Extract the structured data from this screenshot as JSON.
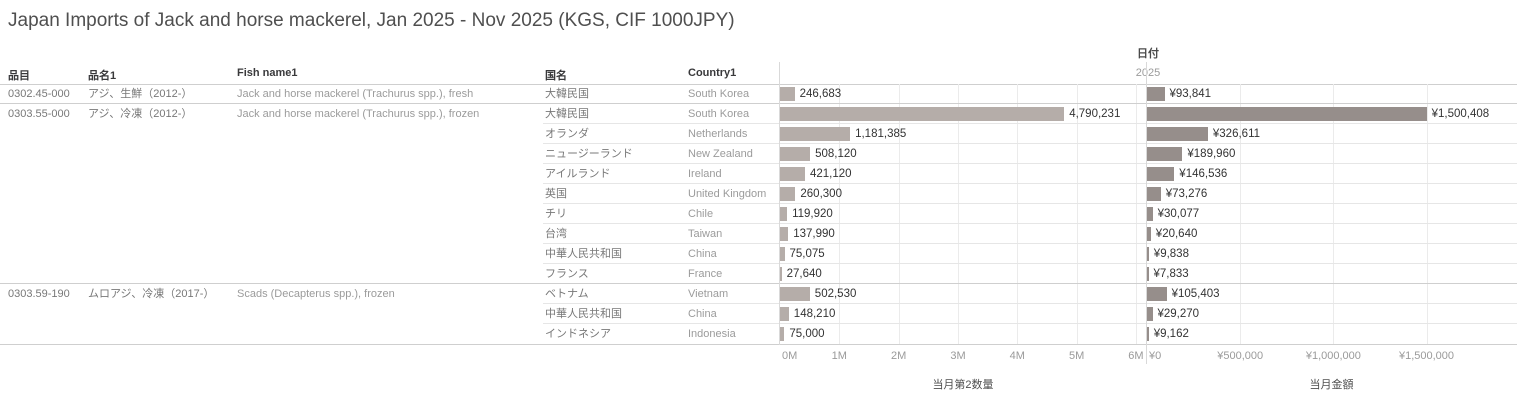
{
  "title": "Japan Imports of Jack and horse mackerel, Jan 2025 - Nov 2025 (KGS, CIF 1000JPY)",
  "header": {
    "item_code": "品目",
    "item_name": "品名1",
    "fish_name": "Fish name1",
    "country_jp": "国名",
    "country_en": "Country1",
    "date": "日付",
    "year": "2025"
  },
  "colors": {
    "qty_bar": "#b5ada9",
    "amt_bar": "#968e8b",
    "grid_line": "#ebebeb",
    "group_border": "#cfcfcf",
    "row_border": "#e6e6e6"
  },
  "chart_data": {
    "type": "bar",
    "orientation": "horizontal",
    "title": "Japan Imports of Jack and horse mackerel, Jan 2025 - Nov 2025 (KGS, CIF 1000JPY)",
    "qty_axis": {
      "title": "当月第2数量",
      "max": 6170000,
      "ticks": [
        {
          "value": 0,
          "label": "0M"
        },
        {
          "value": 1000000,
          "label": "1M"
        },
        {
          "value": 2000000,
          "label": "2M"
        },
        {
          "value": 3000000,
          "label": "3M"
        },
        {
          "value": 4000000,
          "label": "4M"
        },
        {
          "value": 5000000,
          "label": "5M"
        },
        {
          "value": 6000000,
          "label": "6M"
        }
      ]
    },
    "amt_axis": {
      "title": "当月金額",
      "max": 1980000,
      "ticks": [
        {
          "value": 0,
          "label": "¥0"
        },
        {
          "value": 500000,
          "label": "¥500,000"
        },
        {
          "value": 1000000,
          "label": "¥1,000,000"
        },
        {
          "value": 1500000,
          "label": "¥1,500,000"
        }
      ]
    },
    "groups": [
      {
        "code": "0302.45-000",
        "name_jp": "アジ、生鮮（2012-）",
        "fish": "Jack and horse mackerel (Trachurus spp.), fresh",
        "rows": [
          {
            "country_jp": "大韓民国",
            "country_en": "South Korea",
            "qty": 246683,
            "qty_label": "246,683",
            "amt": 93841,
            "amt_label": "¥93,841"
          }
        ]
      },
      {
        "code": "0303.55-000",
        "name_jp": "アジ、冷凍（2012-）",
        "fish": "Jack and horse mackerel (Trachurus spp.), frozen",
        "rows": [
          {
            "country_jp": "大韓民国",
            "country_en": "South Korea",
            "qty": 4790231,
            "qty_label": "4,790,231",
            "amt": 1500408,
            "amt_label": "¥1,500,408"
          },
          {
            "country_jp": "オランダ",
            "country_en": "Netherlands",
            "qty": 1181385,
            "qty_label": "1,181,385",
            "amt": 326611,
            "amt_label": "¥326,611"
          },
          {
            "country_jp": "ニュージーランド",
            "country_en": "New Zealand",
            "qty": 508120,
            "qty_label": "508,120",
            "amt": 189960,
            "amt_label": "¥189,960"
          },
          {
            "country_jp": "アイルランド",
            "country_en": "Ireland",
            "qty": 421120,
            "qty_label": "421,120",
            "amt": 146536,
            "amt_label": "¥146,536"
          },
          {
            "country_jp": "英国",
            "country_en": "United Kingdom",
            "qty": 260300,
            "qty_label": "260,300",
            "amt": 73276,
            "amt_label": "¥73,276"
          },
          {
            "country_jp": "チリ",
            "country_en": "Chile",
            "qty": 119920,
            "qty_label": "119,920",
            "amt": 30077,
            "amt_label": "¥30,077"
          },
          {
            "country_jp": "台湾",
            "country_en": "Taiwan",
            "qty": 137990,
            "qty_label": "137,990",
            "amt": 20640,
            "amt_label": "¥20,640"
          },
          {
            "country_jp": "中華人民共和国",
            "country_en": "China",
            "qty": 75075,
            "qty_label": "75,075",
            "amt": 9838,
            "amt_label": "¥9,838"
          },
          {
            "country_jp": "フランス",
            "country_en": "France",
            "qty": 27640,
            "qty_label": "27,640",
            "amt": 7833,
            "amt_label": "¥7,833"
          }
        ]
      },
      {
        "code": "0303.59-190",
        "name_jp": "ムロアジ、冷凍（2017-）",
        "fish": "Scads (Decapterus spp.), frozen",
        "rows": [
          {
            "country_jp": "ベトナム",
            "country_en": "Vietnam",
            "qty": 502530,
            "qty_label": "502,530",
            "amt": 105403,
            "amt_label": "¥105,403"
          },
          {
            "country_jp": "中華人民共和国",
            "country_en": "China",
            "qty": 148210,
            "qty_label": "148,210",
            "amt": 29270,
            "amt_label": "¥29,270"
          },
          {
            "country_jp": "インドネシア",
            "country_en": "Indonesia",
            "qty": 75000,
            "qty_label": "75,000",
            "amt": 9162,
            "amt_label": "¥9,162"
          }
        ]
      }
    ]
  }
}
